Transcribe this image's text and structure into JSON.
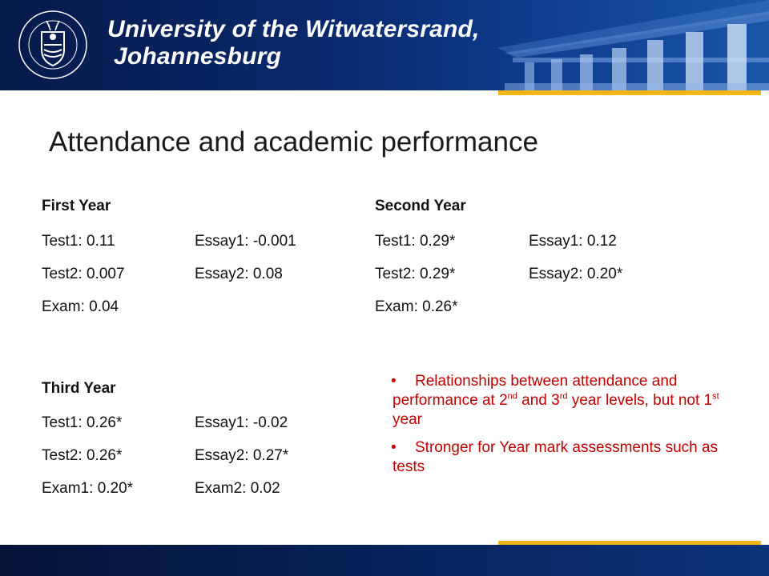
{
  "header": {
    "university_line1": "University of the Witwatersrand,",
    "university_line2": "Johannesburg",
    "logo_icon": "wits-crest-icon",
    "building_icon": "great-hall-columns-icon",
    "colors": {
      "navy": "#0a2a6e",
      "gold": "#f2b61a"
    }
  },
  "title": "Attendance and academic performance",
  "first_year": {
    "heading": "First Year",
    "rows": [
      {
        "c1": "Test1: 0.11",
        "c2": "Essay1: -0.001"
      },
      {
        "c1": "Test2: 0.007",
        "c2": "Essay2: 0.08"
      },
      {
        "c1": "Exam: 0.04",
        "c2": ""
      }
    ]
  },
  "second_year": {
    "heading": "Second Year",
    "rows": [
      {
        "c1": "Test1: 0.29*",
        "c2": "Essay1: 0.12"
      },
      {
        "c1": "Test2: 0.29*",
        "c2": "Essay2: 0.20*"
      },
      {
        "c1": "Exam: 0.26*",
        "c2": ""
      }
    ]
  },
  "third_year": {
    "heading": "Third Year",
    "rows": [
      {
        "c1": "Test1: 0.26*",
        "c2": "Essay1: -0.02"
      },
      {
        "c1": "Test2: 0.26*",
        "c2": "Essay2: 0.27*"
      },
      {
        "c1": "Exam1: 0.20*",
        "c2": "Exam2: 0.02"
      }
    ]
  },
  "bullets": {
    "marker": "•",
    "b1": {
      "part1": "Relationships between attendance and performance at 2",
      "sup1": "nd",
      "part2": " and 3",
      "sup2": "rd",
      "part3": " year levels, but not 1",
      "sup3": "st",
      "part4": " year"
    },
    "b2": {
      "text": "Stronger for Year mark assessments such as tests"
    },
    "color": "#c00000"
  }
}
